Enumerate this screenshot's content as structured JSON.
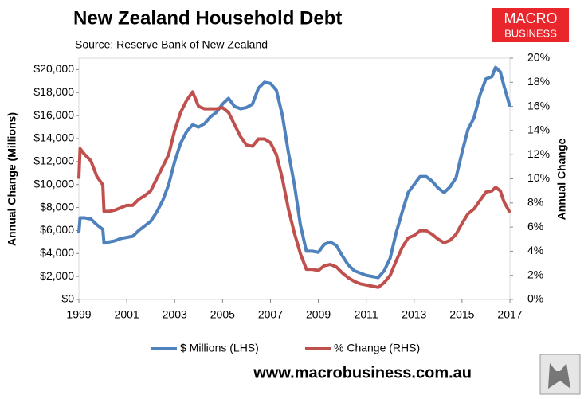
{
  "chart_data": {
    "type": "line",
    "title": "New Zealand Household Debt",
    "subtitle": "Source: Reserve Bank of New Zealand",
    "y_label": "Annual Change (Millions)",
    "y2_label": "Annual Change",
    "logo": [
      "MACRO",
      "BUSINESS"
    ],
    "footer": "www.macrobusiness.com.au",
    "xlim": [
      1999,
      2017
    ],
    "xticks": [
      1999,
      2001,
      2003,
      2005,
      2007,
      2009,
      2011,
      2013,
      2015,
      2017
    ],
    "ylim": [
      0,
      21000
    ],
    "yticks": [
      {
        "value": 0,
        "label": "$0"
      },
      {
        "value": 2000,
        "label": "$2,000"
      },
      {
        "value": 4000,
        "label": "$4,000"
      },
      {
        "value": 6000,
        "label": "$6,000"
      },
      {
        "value": 8000,
        "label": "$8,000"
      },
      {
        "value": 10000,
        "label": "$10,000"
      },
      {
        "value": 12000,
        "label": "$12,000"
      },
      {
        "value": 14000,
        "label": "$14,000"
      },
      {
        "value": 16000,
        "label": "$16,000"
      },
      {
        "value": 18000,
        "label": "$18,000"
      },
      {
        "value": 20000,
        "label": "$20,000"
      }
    ],
    "y2lim": [
      0,
      20
    ],
    "y2ticks": [
      {
        "value": 0,
        "label": "0%"
      },
      {
        "value": 2,
        "label": "2%"
      },
      {
        "value": 4,
        "label": "4%"
      },
      {
        "value": 6,
        "label": "6%"
      },
      {
        "value": 8,
        "label": "8%"
      },
      {
        "value": 10,
        "label": "10%"
      },
      {
        "value": 12,
        "label": "12%"
      },
      {
        "value": 14,
        "label": "14%"
      },
      {
        "value": 16,
        "label": "16%"
      },
      {
        "value": 18,
        "label": "18%"
      },
      {
        "value": 20,
        "label": "20%"
      }
    ],
    "legend": "bottom",
    "x": [
      1999.0,
      1999.05,
      1999.25,
      1999.5,
      1999.75,
      2000.0,
      2000.05,
      2000.25,
      2000.5,
      2000.75,
      2001.0,
      2001.25,
      2001.5,
      2001.75,
      2002.0,
      2002.25,
      2002.5,
      2002.75,
      2003.0,
      2003.25,
      2003.5,
      2003.75,
      2004.0,
      2004.25,
      2004.5,
      2004.75,
      2005.0,
      2005.25,
      2005.5,
      2005.75,
      2006.0,
      2006.25,
      2006.5,
      2006.75,
      2007.0,
      2007.25,
      2007.5,
      2007.75,
      2008.0,
      2008.25,
      2008.5,
      2008.75,
      2009.0,
      2009.25,
      2009.5,
      2009.75,
      2010.0,
      2010.25,
      2010.5,
      2010.75,
      2011.0,
      2011.25,
      2011.5,
      2011.75,
      2012.0,
      2012.25,
      2012.5,
      2012.75,
      2013.0,
      2013.25,
      2013.5,
      2013.75,
      2014.0,
      2014.25,
      2014.5,
      2014.75,
      2015.0,
      2015.25,
      2015.5,
      2015.75,
      2016.0,
      2016.25,
      2016.4,
      2016.6,
      2016.75,
      2017.0
    ],
    "series": [
      {
        "name": "$ Millions (LHS)",
        "color": "#4f81bd",
        "axis": "y",
        "values": [
          5800,
          7100,
          7100,
          7000,
          6500,
          6100,
          4900,
          5000,
          5100,
          5300,
          5400,
          5500,
          6000,
          6400,
          6800,
          7600,
          8600,
          10000,
          12000,
          13600,
          14600,
          15200,
          15000,
          15300,
          15900,
          16300,
          17000,
          17500,
          16800,
          16600,
          16700,
          17000,
          18400,
          18900,
          18800,
          18200,
          16000,
          12800,
          10000,
          6500,
          4200,
          4200,
          4100,
          4800,
          5000,
          4700,
          3800,
          3000,
          2500,
          2300,
          2100,
          2000,
          1900,
          2500,
          3600,
          5800,
          7600,
          9300,
          10000,
          10700,
          10700,
          10300,
          9700,
          9300,
          9800,
          10600,
          12800,
          14800,
          15800,
          17800,
          19200,
          19400,
          20200,
          19800,
          18600,
          16800
        ]
      },
      {
        "name": "% Change (RHS)",
        "color": "#c0504d",
        "axis": "y2",
        "values": [
          10,
          12.5,
          12,
          11.5,
          10.2,
          9.5,
          7.3,
          7.3,
          7.4,
          7.6,
          7.8,
          7.8,
          8.3,
          8.6,
          9.0,
          10.0,
          11.0,
          12.0,
          14.0,
          15.5,
          16.5,
          17.2,
          16.0,
          15.8,
          15.8,
          15.8,
          15.9,
          15.5,
          14.5,
          13.5,
          12.8,
          12.7,
          13.3,
          13.3,
          13.0,
          12.0,
          10.0,
          7.5,
          5.5,
          3.8,
          2.5,
          2.5,
          2.4,
          2.8,
          2.9,
          2.7,
          2.2,
          1.8,
          1.5,
          1.3,
          1.2,
          1.1,
          1.0,
          1.4,
          2.0,
          3.2,
          4.3,
          5.1,
          5.3,
          5.7,
          5.7,
          5.4,
          5.0,
          4.7,
          4.9,
          5.4,
          6.3,
          7.1,
          7.5,
          8.2,
          8.9,
          9.0,
          9.3,
          9.0,
          8.1,
          7.2
        ]
      }
    ]
  }
}
